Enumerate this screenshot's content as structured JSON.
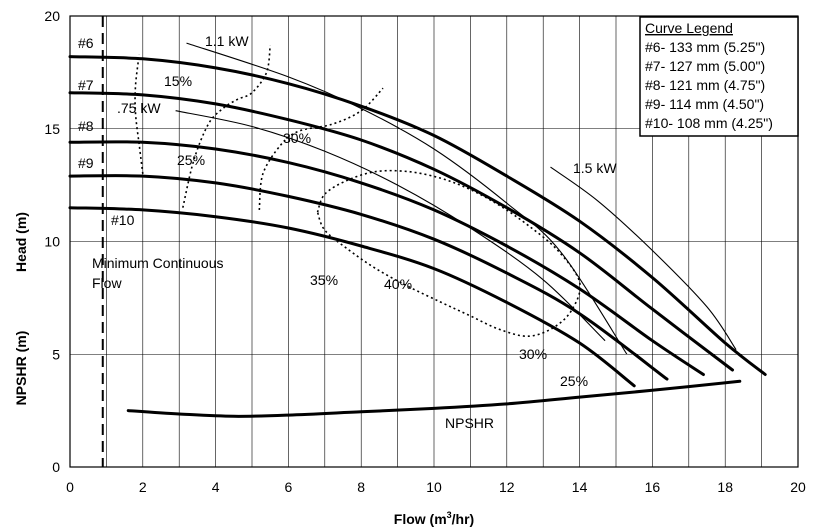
{
  "chart_data": {
    "type": "line",
    "xlabel": "Flow (m³/hr)",
    "ylabel_head": "Head (m)",
    "ylabel_npshr": "NPSHR (m)",
    "xlim": [
      0,
      20
    ],
    "ylim": [
      0,
      20
    ],
    "x_ticks": [
      "0",
      "2",
      "4",
      "6",
      "8",
      "10",
      "12",
      "14",
      "16",
      "18",
      "20"
    ],
    "y_ticks": [
      "0",
      "5",
      "10",
      "15",
      "20"
    ],
    "grid": true,
    "legend": {
      "title": "Curve Legend",
      "placement": "top-right",
      "entries": [
        "#6- 133 mm (5.25\")",
        "#7- 127 mm (5.00\")",
        "#8- 121 mm (4.75\")",
        "#9- 114 mm (4.50\")",
        "#10- 108 mm (4.25\")"
      ]
    },
    "series": [
      {
        "name": "#6",
        "x": [
          0,
          2,
          4,
          6,
          8,
          10,
          12,
          14,
          16,
          18,
          19.1
        ],
        "y": [
          18.2,
          18.1,
          17.7,
          17.0,
          16.0,
          14.7,
          12.9,
          10.9,
          8.4,
          5.5,
          4.1
        ]
      },
      {
        "name": "#7",
        "x": [
          0,
          2,
          4,
          6,
          8,
          10,
          12,
          14,
          16,
          18.2
        ],
        "y": [
          16.6,
          16.5,
          16.1,
          15.4,
          14.5,
          13.2,
          11.5,
          9.5,
          7.0,
          4.3
        ]
      },
      {
        "name": "#8",
        "x": [
          0,
          2,
          4,
          6,
          8,
          10,
          12,
          14,
          16,
          17.4
        ],
        "y": [
          14.4,
          14.4,
          14.1,
          13.5,
          12.6,
          11.4,
          9.8,
          7.9,
          5.6,
          4.1
        ]
      },
      {
        "name": "#9",
        "x": [
          0,
          2,
          4,
          6,
          8,
          10,
          12,
          14,
          16.4
        ],
        "y": [
          12.9,
          12.9,
          12.6,
          12.0,
          11.2,
          10.1,
          8.6,
          6.8,
          3.9
        ]
      },
      {
        "name": "#10",
        "x": [
          0,
          2,
          4,
          6,
          8,
          10,
          12,
          14,
          15.5
        ],
        "y": [
          11.5,
          11.4,
          11.1,
          10.6,
          9.8,
          8.8,
          7.3,
          5.5,
          3.6
        ]
      },
      {
        "name": "NPSHR",
        "x": [
          1.6,
          3,
          4.5,
          6,
          8,
          10,
          12,
          14,
          16,
          18.4
        ],
        "y": [
          2.5,
          2.35,
          2.25,
          2.3,
          2.45,
          2.6,
          2.8,
          3.1,
          3.4,
          3.8
        ]
      }
    ],
    "power_lines": [
      {
        "label": "1.1 kW",
        "x": [
          3.2,
          6,
          8,
          10,
          12,
          13.5,
          15.3
        ],
        "y": [
          18.8,
          17.3,
          15.9,
          14.1,
          11.7,
          9.5,
          5.0
        ]
      },
      {
        "label": ".75 kW",
        "x": [
          2.9,
          5,
          7,
          9,
          11,
          13,
          14.7
        ],
        "y": [
          15.8,
          15.1,
          14.0,
          12.5,
          10.6,
          8.3,
          5.6
        ]
      },
      {
        "label": "1.5 kW",
        "x": [
          13.2,
          14.5,
          16,
          17.5,
          18.3
        ],
        "y": [
          13.3,
          11.8,
          9.6,
          7.1,
          5.2
        ]
      }
    ],
    "efficiency_contours": [
      {
        "label": "15%",
        "x": [
          2.0,
          1.9,
          1.8,
          1.8,
          1.9
        ],
        "y": [
          13.0,
          14.3,
          15.7,
          16.9,
          18.3
        ]
      },
      {
        "label": "25%",
        "x": [
          3.1,
          3.4,
          3.8,
          4.2,
          4.6,
          5.0,
          5.4,
          5.5
        ],
        "y": [
          11.5,
          13.6,
          15.2,
          15.9,
          16.3,
          16.6,
          17.5,
          18.7
        ]
      },
      {
        "label": "30%",
        "x": [
          5.2,
          5.3,
          5.8,
          6.3,
          7.2,
          8.0,
          8.6
        ],
        "y": [
          11.4,
          13.0,
          14.3,
          14.9,
          15.2,
          15.8,
          16.8
        ]
      },
      {
        "label": "40%",
        "x": [
          6.8,
          7.0,
          7.6,
          8.4,
          9.3,
          10.2,
          11.0,
          11.8,
          12.6,
          13.4,
          14.0,
          13.8,
          13.3,
          12.6,
          11.8,
          11.0,
          10.2,
          9.3,
          8.4,
          7.6,
          7.0,
          6.8
        ],
        "y": [
          11.3,
          12.1,
          12.7,
          13.1,
          13.1,
          12.8,
          12.3,
          11.6,
          10.7,
          9.6,
          8.2,
          7.0,
          6.2,
          5.8,
          6.1,
          6.7,
          7.3,
          8.0,
          8.8,
          9.7,
          10.5,
          11.3
        ]
      }
    ],
    "annotations": {
      "min_flow_label_1": "Minimum Continuous",
      "min_flow_label_2": "Flow",
      "min_flow_x": 0.9,
      "npshr": "NPSHR",
      "eff_15": "15%",
      "eff_25": "25%",
      "eff_30a": "30%",
      "eff_35": "35%",
      "eff_40": "40%",
      "eff_30b": "30%",
      "eff_25b": "25%",
      "kw_11": "1.1 kW",
      "kw_075": ".75 kW",
      "kw_15": "1.5 kW",
      "c6": "#6",
      "c7": "#7",
      "c8": "#8",
      "c9": "#9",
      "c10": "#10"
    }
  }
}
